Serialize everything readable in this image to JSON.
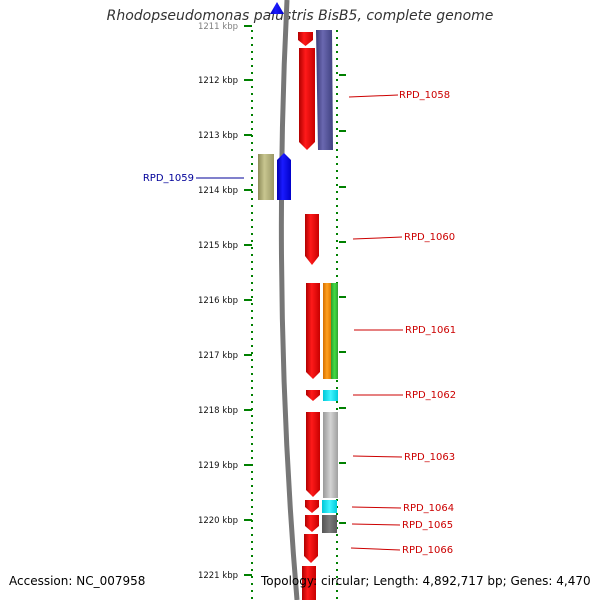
{
  "header": {
    "title": "Rhodopseudomonas palustris BisB5, complete genome"
  },
  "footer": {
    "accession": "Accession: NC_007958",
    "topology": "Topology: circular; Length: 4,892,717 bp; Genes: 4,470"
  },
  "ruler": {
    "ticks": [
      {
        "label": "1211 kbp"
      },
      {
        "label": "1212 kbp"
      },
      {
        "label": "1213 kbp"
      },
      {
        "label": "1214 kbp"
      },
      {
        "label": "1215 kbp"
      },
      {
        "label": "1216 kbp"
      },
      {
        "label": "1217 kbp"
      },
      {
        "label": "1218 kbp"
      },
      {
        "label": "1219 kbp"
      },
      {
        "label": "1220 kbp"
      },
      {
        "label": "1221 kbp"
      }
    ]
  },
  "genes": [
    {
      "label": "RPD_1058",
      "color": "#cc0000"
    },
    {
      "label": "RPD_1059",
      "color": "#000099"
    },
    {
      "label": "RPD_1060",
      "color": "#cc0000"
    },
    {
      "label": "RPD_1061",
      "color": "#cc0000"
    },
    {
      "label": "RPD_1062",
      "color": "#cc0000"
    },
    {
      "label": "RPD_1063",
      "color": "#cc0000"
    },
    {
      "label": "RPD_1064",
      "color": "#cc0000"
    },
    {
      "label": "RPD_1065",
      "color": "#cc0000"
    },
    {
      "label": "RPD_1066",
      "color": "#cc0000"
    }
  ],
  "colors": {
    "cds_forward": "#ee0000",
    "cds_reverse": "#0000ee",
    "ruler_dots": "#008000",
    "backbone": "#777777"
  }
}
